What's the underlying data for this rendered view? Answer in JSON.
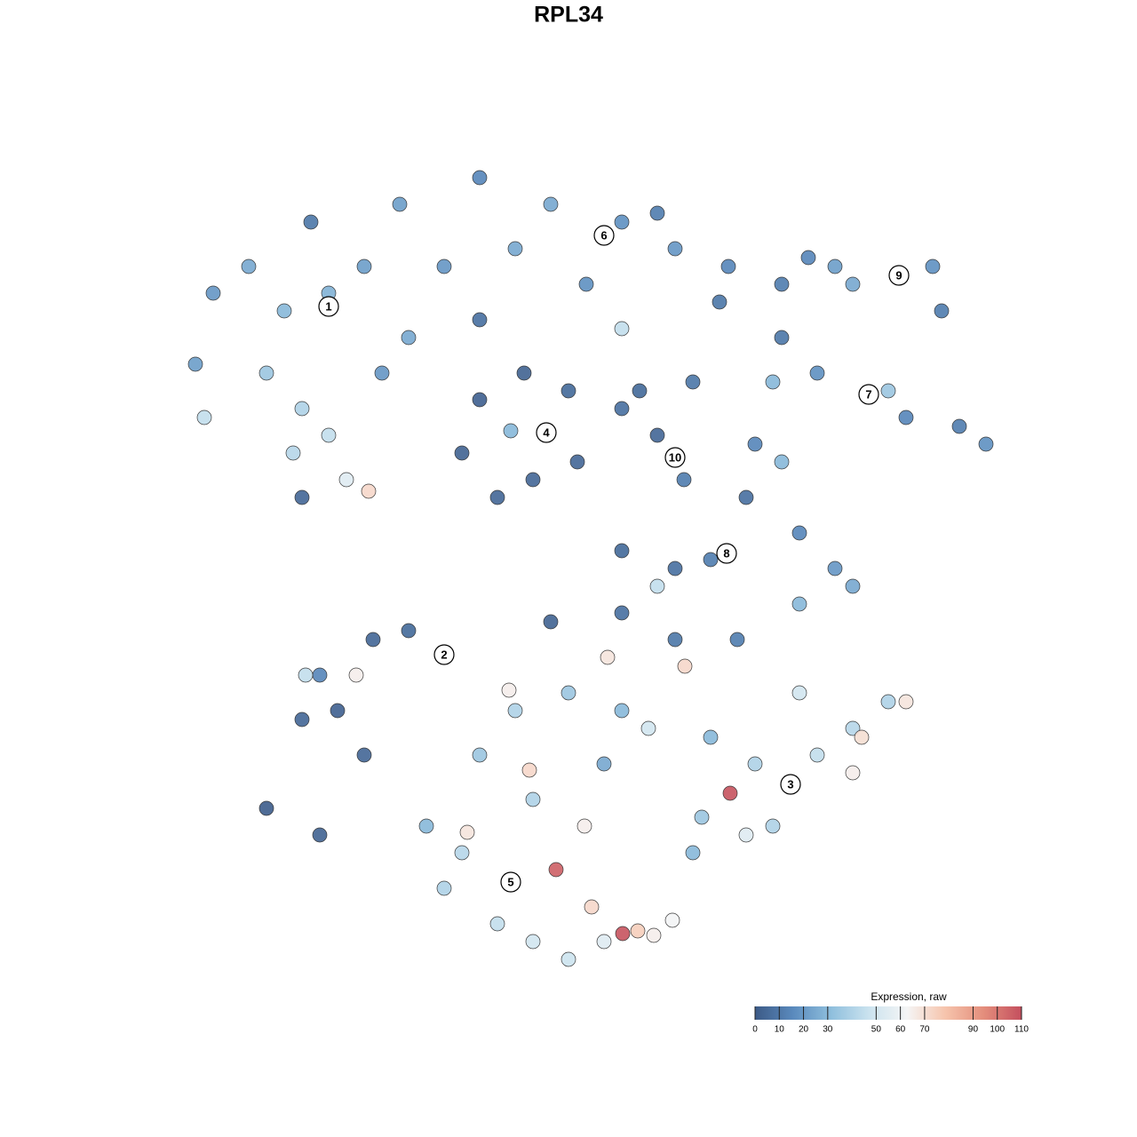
{
  "chart_data": {
    "type": "scatter",
    "title": "RPL34",
    "xlim": [
      0,
      128
    ],
    "ylim": [
      0,
      128
    ],
    "x": [
      22,
      24,
      28,
      32,
      37,
      41,
      30,
      34,
      37,
      33,
      39,
      41.5,
      34,
      23,
      46,
      43,
      35,
      45,
      54,
      62,
      70,
      76,
      82,
      50,
      58,
      66,
      70,
      54,
      74,
      81,
      61.5,
      54,
      52,
      56,
      64,
      65,
      59,
      60,
      57.5,
      70,
      76,
      74,
      78,
      77,
      72,
      101.2,
      91,
      96,
      105,
      106,
      94,
      88,
      97.8,
      88,
      92,
      102,
      108,
      111,
      87,
      100,
      85,
      88,
      84,
      90,
      94,
      96,
      90,
      80,
      76,
      74,
      70,
      50,
      42,
      38,
      34,
      36,
      34.4,
      40.1,
      30,
      36,
      46,
      62,
      70,
      76,
      83,
      41,
      89,
      80,
      85,
      92,
      96,
      100,
      102,
      97,
      96,
      82.2,
      79,
      87,
      84,
      77.1,
      90,
      78,
      57.5,
      52,
      50,
      56,
      60,
      64,
      68,
      62.6,
      70.1,
      66.6,
      71.8,
      73.6,
      75.7,
      52.6,
      65.8,
      48,
      60,
      58,
      64,
      70,
      73,
      68.4,
      59.6,
      57.3,
      68,
      54
    ],
    "y": [
      87,
      95,
      98,
      93,
      95,
      98,
      86,
      82,
      79,
      77,
      74,
      72.7,
      72,
      81,
      90,
      86,
      103,
      105,
      108,
      105,
      103,
      100,
      98,
      98,
      100,
      96,
      91,
      92,
      104,
      94,
      79.3,
      83,
      77,
      72,
      84,
      76,
      86,
      74,
      79.5,
      82,
      76.5,
      79,
      85,
      74,
      84,
      97,
      99,
      96,
      98,
      93,
      98,
      96,
      83.6,
      90,
      86,
      81,
      80,
      78,
      85,
      84,
      78,
      76,
      72,
      68,
      64,
      62,
      60,
      65,
      64,
      62,
      66,
      54.3,
      56,
      48,
      47,
      52,
      52,
      52,
      37,
      34,
      57,
      58,
      59,
      56,
      56,
      43,
      39.7,
      45,
      42,
      43,
      46,
      49,
      49,
      45,
      41,
      38.7,
      36,
      35,
      34,
      53,
      50,
      32,
      28.7,
      32,
      28,
      24,
      22,
      20,
      22,
      30.1,
      22.9,
      25.9,
      23.2,
      22.7,
      24.4,
      34.3,
      35,
      35,
      38,
      48,
      50,
      48,
      46,
      54,
      41.3,
      50.3,
      42,
      43
    ],
    "values": [
      22,
      20,
      25,
      30,
      28,
      22,
      35,
      40,
      45,
      42,
      55,
      72,
      5,
      45,
      25,
      20,
      10,
      22,
      15,
      25,
      18,
      20,
      15,
      20,
      25,
      18,
      45,
      8,
      12,
      10,
      5,
      3,
      4,
      5,
      6,
      5,
      4,
      5,
      30,
      8,
      8,
      5,
      10,
      12,
      6,
      20,
      15,
      25,
      18,
      12,
      22,
      12,
      15,
      10,
      18,
      15,
      12,
      18,
      30,
      35,
      15,
      30,
      8,
      15,
      20,
      25,
      30,
      12,
      8,
      45,
      6,
      8,
      5,
      3,
      5,
      15,
      45,
      65,
      2,
      4,
      6,
      4,
      8,
      10,
      12,
      5,
      38,
      30,
      40,
      45,
      42,
      40,
      68,
      70,
      65,
      108,
      35,
      40,
      55,
      72,
      50,
      30,
      45,
      42,
      40,
      45,
      50,
      48,
      55,
      105,
      108,
      72,
      75,
      65,
      62,
      68,
      65,
      30,
      40,
      40,
      35,
      30,
      50,
      68,
      72,
      65,
      25,
      35
    ],
    "clusters": [
      {
        "label": "1",
        "x": 37,
        "y": 93.5
      },
      {
        "label": "2",
        "x": 50,
        "y": 54.3
      },
      {
        "label": "3",
        "x": 89,
        "y": 39.7
      },
      {
        "label": "4",
        "x": 61.5,
        "y": 79.3
      },
      {
        "label": "5",
        "x": 57.5,
        "y": 28.7
      },
      {
        "label": "6",
        "x": 68,
        "y": 101.5
      },
      {
        "label": "7",
        "x": 97.8,
        "y": 83.6
      },
      {
        "label": "8",
        "x": 81.8,
        "y": 65.7
      },
      {
        "label": "9",
        "x": 101.2,
        "y": 97
      },
      {
        "label": "10",
        "x": 76,
        "y": 76.5
      }
    ],
    "colorbar": {
      "title": "Expression, raw",
      "clim": [
        0,
        110
      ],
      "ticks": [
        0,
        10,
        20,
        30,
        50,
        60,
        70,
        90,
        100,
        110
      ],
      "colors": [
        "#3c5a86",
        "#5a8abd",
        "#8fbfdd",
        "#cbe3ef",
        "#f5f5f5",
        "#f6c4ac",
        "#e48e7c",
        "#c44f5e"
      ]
    }
  }
}
